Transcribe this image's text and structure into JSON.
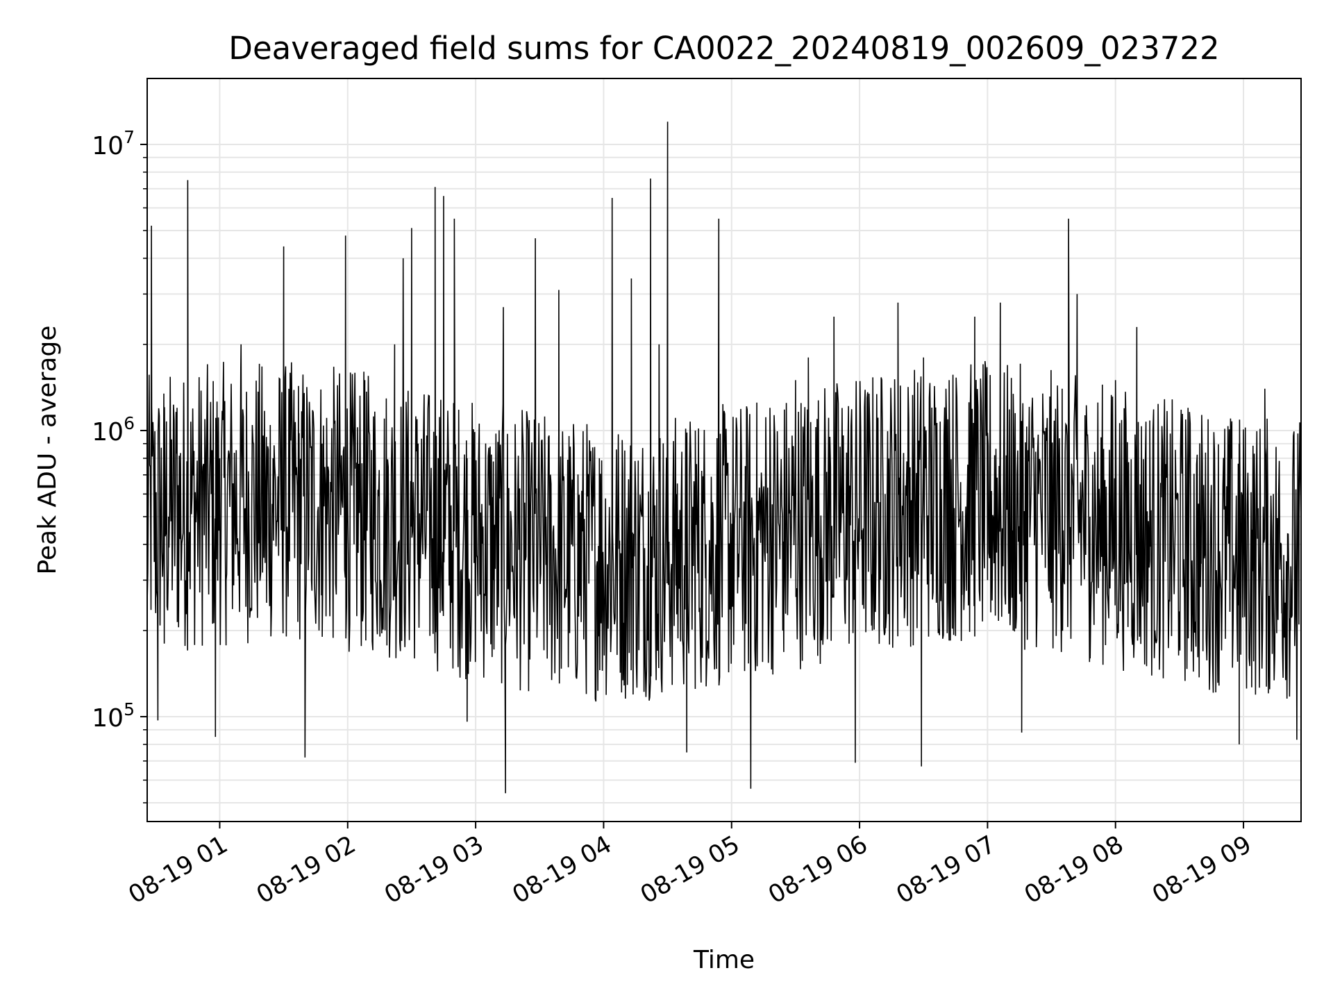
{
  "chart_data": {
    "type": "line",
    "title": "Deaveraged field sums for CA0022_20240819_002609_023722",
    "xlabel": "Time",
    "ylabel": "Peak ADU - average",
    "y_scale": "log",
    "ylim": [
      43000,
      17000000
    ],
    "xlim": [
      "2024-08-19T00:26:00",
      "2024-08-19T09:27:00"
    ],
    "grid": true,
    "line_color": "#000000",
    "x_ticks": [
      {
        "label": "08-19 01",
        "value": "2024-08-19T01:00:00"
      },
      {
        "label": "08-19 02",
        "value": "2024-08-19T02:00:00"
      },
      {
        "label": "08-19 03",
        "value": "2024-08-19T03:00:00"
      },
      {
        "label": "08-19 04",
        "value": "2024-08-19T04:00:00"
      },
      {
        "label": "08-19 05",
        "value": "2024-08-19T05:00:00"
      },
      {
        "label": "08-19 06",
        "value": "2024-08-19T06:00:00"
      },
      {
        "label": "08-19 07",
        "value": "2024-08-19T07:00:00"
      },
      {
        "label": "08-19 08",
        "value": "2024-08-19T08:00:00"
      },
      {
        "label": "08-19 09",
        "value": "2024-08-19T09:00:00"
      }
    ],
    "y_ticks": [
      {
        "base": "10",
        "exp": "5",
        "value": 100000
      },
      {
        "base": "10",
        "exp": "6",
        "value": 1000000
      },
      {
        "base": "10",
        "exp": "7",
        "value": 10000000
      }
    ],
    "series": [
      {
        "x": [
          "2024-08-19T00:26:00",
          "2024-08-19T00:28:00",
          "2024-08-19T00:30:00",
          "2024-08-19T00:34:00",
          "2024-08-19T00:36:00",
          "2024-08-19T00:40:00",
          "2024-08-19T00:45:00",
          "2024-08-19T00:52:00",
          "2024-08-19T00:56:00",
          "2024-08-19T01:00:00",
          "2024-08-19T01:03:00",
          "2024-08-19T01:10:00",
          "2024-08-19T01:15:00",
          "2024-08-19T01:18:00",
          "2024-08-19T01:22:00",
          "2024-08-19T01:25:00",
          "2024-08-19T01:30:00",
          "2024-08-19T01:37:00",
          "2024-08-19T01:43:00",
          "2024-08-19T01:48:00",
          "2024-08-19T01:53:00",
          "2024-08-19T01:59:00",
          "2024-08-19T02:03:00",
          "2024-08-19T02:08:00",
          "2024-08-19T02:13:00",
          "2024-08-19T02:18:00",
          "2024-08-19T02:22:00",
          "2024-08-19T02:26:00",
          "2024-08-19T02:30:00",
          "2024-08-19T02:33:00",
          "2024-08-19T02:37:00",
          "2024-08-19T02:41:00",
          "2024-08-19T02:45:00",
          "2024-08-19T02:50:00",
          "2024-08-19T02:56:00",
          "2024-08-19T03:02:00",
          "2024-08-19T03:08:00",
          "2024-08-19T03:13:00",
          "2024-08-19T03:17:00",
          "2024-08-19T03:22:00",
          "2024-08-19T03:28:00",
          "2024-08-19T03:33:00",
          "2024-08-19T03:39:00",
          "2024-08-19T03:45:00",
          "2024-08-19T03:52:00",
          "2024-08-19T03:58:00",
          "2024-08-19T04:04:00",
          "2024-08-19T04:09:00",
          "2024-08-19T04:13:00",
          "2024-08-19T04:18:00",
          "2024-08-19T04:22:00",
          "2024-08-19T04:26:00",
          "2024-08-19T04:30:00",
          "2024-08-19T04:34:00",
          "2024-08-19T04:38:00",
          "2024-08-19T04:43:00",
          "2024-08-19T04:48:00",
          "2024-08-19T04:54:00",
          "2024-08-19T05:00:00",
          "2024-08-19T05:06:00",
          "2024-08-19T05:12:00",
          "2024-08-19T05:18:00",
          "2024-08-19T05:24:00",
          "2024-08-19T05:30:00",
          "2024-08-19T05:36:00",
          "2024-08-19T05:42:00",
          "2024-08-19T05:48:00",
          "2024-08-19T05:54:00",
          "2024-08-19T06:00:00",
          "2024-08-19T06:06:00",
          "2024-08-19T06:12:00",
          "2024-08-19T06:18:00",
          "2024-08-19T06:24:00",
          "2024-08-19T06:30:00",
          "2024-08-19T06:36:00",
          "2024-08-19T06:42:00",
          "2024-08-19T06:48:00",
          "2024-08-19T06:54:00",
          "2024-08-19T07:00:00",
          "2024-08-19T07:06:00",
          "2024-08-19T07:12:00",
          "2024-08-19T07:18:00",
          "2024-08-19T07:24:00",
          "2024-08-19T07:30:00",
          "2024-08-19T07:35:00",
          "2024-08-19T07:38:00",
          "2024-08-19T07:42:00",
          "2024-08-19T07:48:00",
          "2024-08-19T07:54:00",
          "2024-08-19T08:00:00",
          "2024-08-19T08:05:00",
          "2024-08-19T08:10:00",
          "2024-08-19T08:16:00",
          "2024-08-19T08:22:00",
          "2024-08-19T08:28:00",
          "2024-08-19T08:34:00",
          "2024-08-19T08:40:00",
          "2024-08-19T08:46:00",
          "2024-08-19T08:52:00",
          "2024-08-19T08:58:00",
          "2024-08-19T09:04:00",
          "2024-08-19T09:10:00",
          "2024-08-19T09:14:00",
          "2024-08-19T09:18:00",
          "2024-08-19T09:22:00",
          "2024-08-19T09:26:00"
        ],
        "y": [
          250000,
          5200000,
          230000,
          180000,
          500000,
          1200000,
          7500000,
          700000,
          600000,
          800000,
          300000,
          2000000,
          500000,
          700000,
          250000,
          800000,
          4400000,
          600000,
          300000,
          900000,
          350000,
          4800000,
          400000,
          1500000,
          300000,
          600000,
          2000000,
          4000000,
          5100000,
          900000,
          600000,
          7100000,
          6600000,
          5500000,
          800000,
          400000,
          300000,
          2700000,
          400000,
          1000000,
          4700000,
          500000,
          3100000,
          500000,
          600000,
          800000,
          6500000,
          700000,
          3400000,
          500000,
          7600000,
          2000000,
          12000000,
          600000,
          300000,
          1000000,
          400000,
          5500000,
          300000,
          400000,
          150000,
          1200000,
          200000,
          1500000,
          1800000,
          400000,
          2500000,
          300000,
          700000,
          200000,
          600000,
          2800000,
          300000,
          1800000,
          250000,
          1500000,
          400000,
          2500000,
          300000,
          2800000,
          200000,
          400000,
          600000,
          250000,
          1400000,
          5500000,
          3000000,
          500000,
          250000,
          1500000,
          700000,
          2300000,
          350000,
          900000,
          450000,
          1200000,
          350000,
          650000,
          300000,
          900000,
          450000,
          1400000,
          600000,
          300000,
          200000,
          210000
        ],
        "y_troughs": [
          {
            "x": "2024-08-19T00:31:00",
            "y": 97000
          },
          {
            "x": "2024-08-19T00:58:00",
            "y": 85000
          },
          {
            "x": "2024-08-19T01:40:00",
            "y": 72000
          },
          {
            "x": "2024-08-19T02:56:00",
            "y": 96000
          },
          {
            "x": "2024-08-19T03:14:00",
            "y": 54000
          },
          {
            "x": "2024-08-19T04:39:00",
            "y": 75000
          },
          {
            "x": "2024-08-19T05:09:00",
            "y": 56000
          },
          {
            "x": "2024-08-19T05:58:00",
            "y": 69000
          },
          {
            "x": "2024-08-19T06:29:00",
            "y": 67000
          },
          {
            "x": "2024-08-19T07:16:00",
            "y": 88000
          },
          {
            "x": "2024-08-19T08:58:00",
            "y": 80000
          },
          {
            "x": "2024-08-19T09:25:00",
            "y": 83000
          }
        ]
      }
    ]
  }
}
